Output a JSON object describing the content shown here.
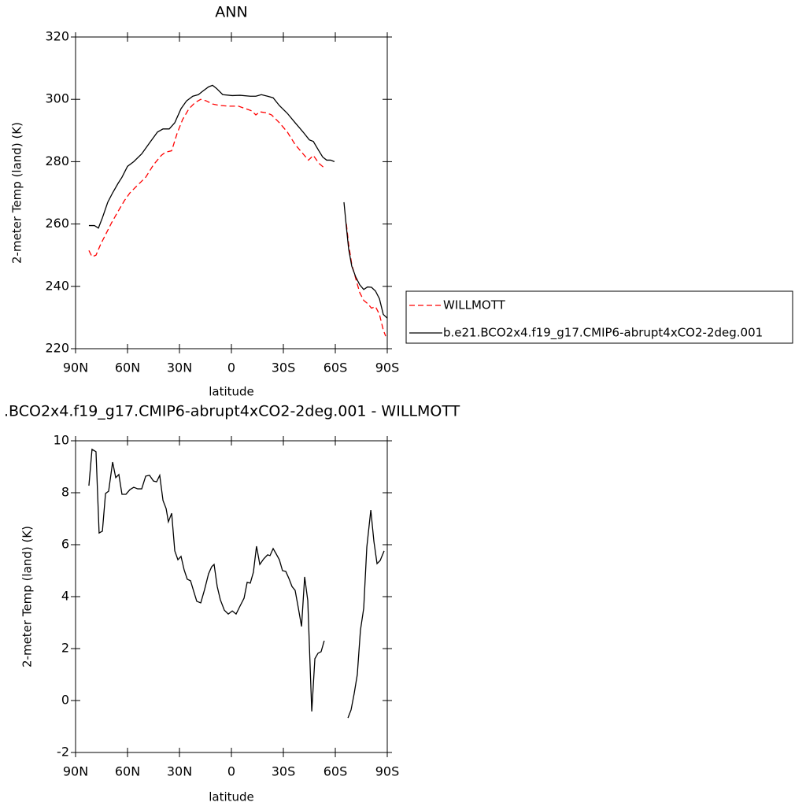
{
  "chart_data": [
    {
      "type": "line",
      "title": "ANN",
      "x_label": "latitude",
      "y_label": "2-meter Temp (land) (K)",
      "xlim": [
        90,
        -90
      ],
      "xticks": [
        {
          "value": 90,
          "label": "90N"
        },
        {
          "value": 60,
          "label": "60N"
        },
        {
          "value": 30,
          "label": "30N"
        },
        0,
        {
          "value": -30,
          "label": "30S"
        },
        {
          "value": -60,
          "label": "60S"
        },
        {
          "value": -90,
          "label": "90S"
        }
      ],
      "ylim": [
        220,
        320
      ],
      "yticks": [
        220,
        240,
        260,
        280,
        300,
        320
      ],
      "legend": "right",
      "series": [
        {
          "name": "WILLMOTT",
          "color": "#ff0000",
          "dash": true,
          "x": [
            82.3,
            80.5,
            78.2,
            75.5,
            72.3,
            69.1,
            65.5,
            61.8,
            58.6,
            54.1,
            49.5,
            45,
            40.5,
            38.2,
            34.5,
            31.4,
            28.2,
            24.5,
            20.9,
            17.7,
            14.5,
            10.9,
            6.4,
            0.9,
            -4.1,
            -8.2,
            -11.8,
            -14.1,
            -16.4,
            -20,
            -23.2,
            -27.7,
            -32.3,
            -36.8,
            -41.4,
            -44.5,
            -47.3,
            -50.5,
            -53.6,
            -62,
            -66.4,
            -67.7,
            -69.5,
            -71.8,
            -74.1,
            -76.4,
            -78.6,
            -80.9,
            -83.2,
            -85.5,
            -87.7,
            -89.1
          ],
          "values": [
            251.5,
            249.5,
            250,
            253.5,
            257,
            260.5,
            264,
            267.5,
            270,
            272.5,
            275,
            279,
            282,
            283,
            283.5,
            289,
            293.5,
            297,
            299,
            300,
            299.5,
            298.5,
            298,
            297.8,
            297.8,
            297,
            296.3,
            295,
            296,
            295.7,
            295,
            292.5,
            289.5,
            285.5,
            282.5,
            280.5,
            282,
            279.5,
            278,
            null,
            260,
            253.5,
            247,
            242.5,
            238,
            235.5,
            234.5,
            233,
            233.5,
            231,
            226,
            224
          ]
        },
        {
          "name": "b.e21.BCO2x4.f19_g17.CMIP6-abrupt4xCO2-2deg.001",
          "color": "#000000",
          "dash": false,
          "x": [
            82.3,
            79.1,
            76.8,
            74.5,
            71.4,
            68.6,
            65.5,
            63.2,
            60,
            56.4,
            51.8,
            47.3,
            42.7,
            39.5,
            35.9,
            32.7,
            29.1,
            25.9,
            22.3,
            19.1,
            16.8,
            13.2,
            10.9,
            8.6,
            5,
            -0.5,
            -5,
            -10.9,
            -14.1,
            -17.3,
            -20.9,
            -24.1,
            -27.7,
            -32.3,
            -36.8,
            -41.4,
            -45,
            -47.3,
            -50.5,
            -52.7,
            -55,
            -57.3,
            -59.5,
            -62,
            -65,
            -66.4,
            -67.7,
            -69.5,
            -71.8,
            -74.1,
            -76.4,
            -78.6,
            -80.9,
            -83.2,
            -85.5,
            -87.7,
            -90
          ],
          "values": [
            259.5,
            259.5,
            258.7,
            262,
            267,
            270,
            273,
            275,
            278.5,
            280,
            282.5,
            286,
            289.5,
            290.5,
            290.5,
            292.5,
            297,
            299.5,
            301,
            301.5,
            302.5,
            304,
            304.5,
            303.5,
            301.5,
            301.2,
            301.3,
            301,
            301,
            301.5,
            301,
            300.5,
            298,
            295.5,
            292.5,
            289.5,
            287,
            286.5,
            283.5,
            281.5,
            280.5,
            280.5,
            280,
            null,
            267,
            259,
            252,
            246.5,
            243,
            240.5,
            239,
            239.8,
            239.7,
            238.5,
            236,
            231,
            229.8
          ]
        }
      ]
    },
    {
      "type": "line",
      "title": ".BCO2x4.f19_g17.CMIP6-abrupt4xCO2-2deg.001 - WILLMOTT",
      "x_label": "latitude",
      "y_label": "2-meter Temp (land) (K)",
      "xlim": [
        90,
        -90
      ],
      "xticks": [
        {
          "value": 90,
          "label": "90N"
        },
        {
          "value": 60,
          "label": "60N"
        },
        {
          "value": 30,
          "label": "30N"
        },
        0,
        {
          "value": -30,
          "label": "30S"
        },
        {
          "value": -60,
          "label": "60S"
        },
        {
          "value": -90,
          "label": "90S"
        }
      ],
      "ylim": [
        -2,
        10
      ],
      "yticks": [
        -2,
        0,
        2,
        4,
        6,
        8,
        10
      ],
      "series": [
        {
          "color": "#000000",
          "dash": false,
          "x": [
            82.3,
            80.5,
            78.2,
            76.4,
            74.5,
            72.7,
            70.9,
            68.6,
            66.8,
            65,
            63.2,
            60.9,
            58.6,
            56.4,
            54.1,
            51.8,
            49.5,
            47.3,
            45,
            43.2,
            41.4,
            39.5,
            37.7,
            36.4,
            34.5,
            32.7,
            30.9,
            29.1,
            27.3,
            25.5,
            23.6,
            21.8,
            20,
            17.7,
            15.5,
            13.2,
            11.4,
            10,
            8.2,
            6.4,
            4.1,
            1.8,
            -0.5,
            -2.7,
            -5,
            -7.3,
            -9.1,
            -10.9,
            -12.7,
            -14.5,
            -16.4,
            -18.6,
            -20.9,
            -22.3,
            -24.1,
            -25.9,
            -27.7,
            -29.5,
            -31.4,
            -33.2,
            -35,
            -36.8,
            -38.6,
            -40.5,
            -42.3,
            -44.1,
            -46.4,
            -48.2,
            -50,
            -51.8,
            -53.6,
            -60,
            -67.3,
            -69.1,
            -70.9,
            -72.7,
            -74.5,
            -76.4,
            -78.2,
            -80.5,
            -82.3,
            -84.1,
            -85.9,
            -88.2
          ],
          "values": [
            8.27,
            9.67,
            9.58,
            6.45,
            6.52,
            7.97,
            8.06,
            9.18,
            8.58,
            8.7,
            7.94,
            7.94,
            8.12,
            8.21,
            8.15,
            8.15,
            8.64,
            8.67,
            8.45,
            8.42,
            8.67,
            7.7,
            7.39,
            6.88,
            7.21,
            5.76,
            5.42,
            5.55,
            5.03,
            4.67,
            4.61,
            4.21,
            3.82,
            3.76,
            4.27,
            4.88,
            5.15,
            5.24,
            4.39,
            3.88,
            3.48,
            3.33,
            3.45,
            3.33,
            3.64,
            3.94,
            4.55,
            4.52,
            4.94,
            5.94,
            5.24,
            5.45,
            5.61,
            5.58,
            5.85,
            5.64,
            5.42,
            5.0,
            4.97,
            4.7,
            4.39,
            4.24,
            3.58,
            2.85,
            4.76,
            3.85,
            -0.42,
            1.61,
            1.82,
            1.88,
            2.3,
            null,
            -0.67,
            -0.36,
            0.27,
            1.0,
            2.7,
            3.55,
            5.91,
            7.33,
            6.12,
            5.27,
            5.39,
            5.76
          ]
        }
      ]
    }
  ]
}
